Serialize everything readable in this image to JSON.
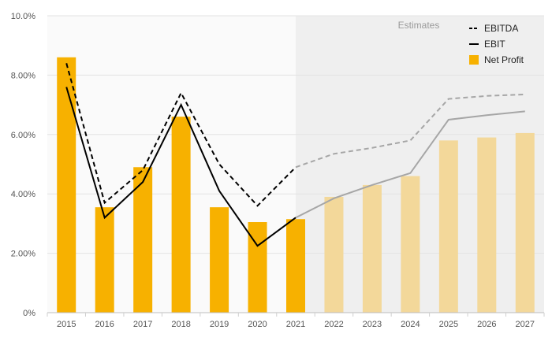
{
  "chart_data": {
    "type": "bar+line",
    "categories": [
      "2015",
      "2016",
      "2017",
      "2018",
      "2019",
      "2020",
      "2021",
      "2022",
      "2023",
      "2024",
      "2025",
      "2026",
      "2027"
    ],
    "estimates_from": "2022",
    "estimates_label": "Estimates",
    "y_ticks": [
      "0%",
      "2.00%",
      "4.00%",
      "6.00%",
      "8.00%",
      "10.0%"
    ],
    "ylim": [
      0,
      10
    ],
    "grid": true,
    "legend_position": "top-right",
    "series": [
      {
        "name": "EBITDA",
        "kind": "line",
        "style": "dashed",
        "values": [
          8.4,
          3.7,
          4.8,
          7.4,
          5.0,
          3.6,
          4.9,
          5.35,
          5.55,
          5.8,
          7.2,
          7.3,
          7.35
        ]
      },
      {
        "name": "EBIT",
        "kind": "line",
        "style": "solid",
        "values": [
          7.6,
          3.2,
          4.4,
          7.0,
          4.1,
          2.25,
          3.2,
          3.85,
          4.3,
          4.7,
          6.5,
          6.65,
          6.78
        ]
      },
      {
        "name": "Net Profit",
        "kind": "bar",
        "values": [
          8.6,
          3.55,
          4.9,
          6.6,
          3.55,
          3.05,
          3.15,
          3.9,
          4.3,
          4.6,
          5.8,
          5.9,
          6.05
        ]
      }
    ],
    "colors": {
      "bar": "#f7b100",
      "bar_estimate": "#f3d89a",
      "line": "#000000",
      "line_estimate": "#a6a6a6",
      "estimate_band": "#efefef",
      "plot_bg": "#fafafa",
      "grid": "#e3e3e3"
    }
  }
}
